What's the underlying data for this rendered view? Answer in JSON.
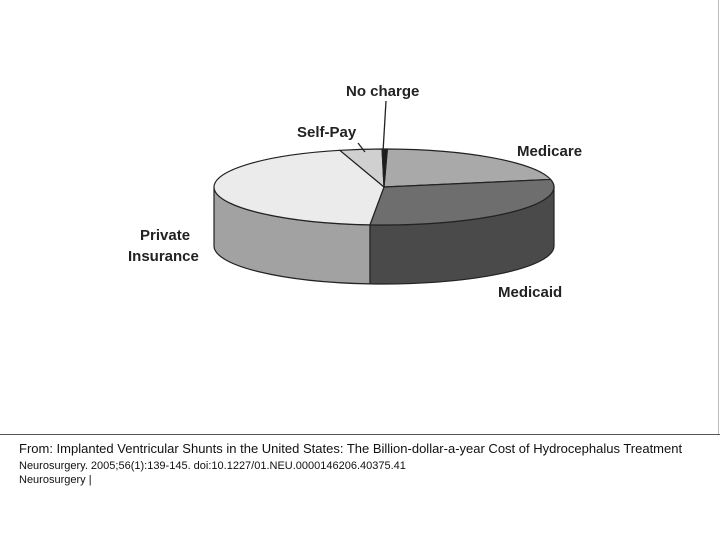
{
  "chart_data": {
    "type": "pie",
    "title": "",
    "categories": [
      "Medicare",
      "Medicaid",
      "Private Insurance",
      "Self-Pay",
      "No charge"
    ],
    "values": [
      21.5,
      29.5,
      44.5,
      4.0,
      0.5
    ],
    "colors": [
      "#a9a9a9",
      "#6e6e6e",
      "#ebebeb",
      "#d0d0d0",
      "#1c1c1c"
    ],
    "side_colors": [
      "#7a7a7a",
      "#4a4a4a",
      "#a2a2a2",
      "#8c8c8c",
      "#111111"
    ],
    "labels": {
      "medicare": "Medicare",
      "medicaid": "Medicaid",
      "private_line1": "Private",
      "private_line2": "Insurance",
      "selfpay": "Self-Pay",
      "nocharge": "No charge"
    },
    "legend": "none",
    "grid": false,
    "style": "3d-tilted"
  },
  "caption": {
    "from": "From: Implanted Ventricular Shunts in the United States: The Billion-dollar-a-year Cost of Hydrocephalus Treatment",
    "citation": "Neurosurgery. 2005;56(1):139-145. doi:10.1227/01.NEU.0000146206.40375.41",
    "journal": "Neurosurgery |"
  }
}
